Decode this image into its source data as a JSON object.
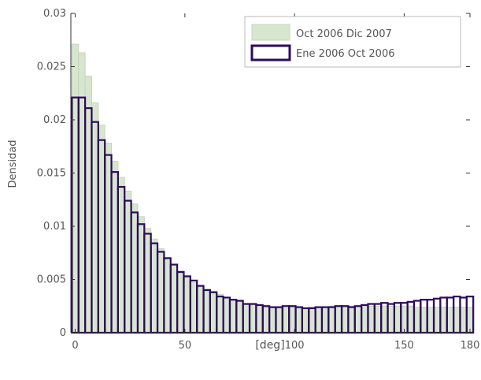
{
  "chart_data": {
    "type": "bar",
    "title": "",
    "xlabel": "[deg]",
    "ylabel": "Densidad",
    "xlim": [
      -2,
      180
    ],
    "ylim": [
      0,
      0.03
    ],
    "x_ticks": [
      0,
      50,
      100,
      150,
      180
    ],
    "y_ticks": [
      0,
      0.005,
      0.01,
      0.015,
      0.02,
      0.025,
      0.03
    ],
    "y_tick_labels": [
      "0",
      "0.005",
      "0.01",
      "0.015",
      "0.02",
      "0.025",
      "0.03"
    ],
    "bin_width": 3,
    "bin_start": -1.5,
    "legend_position": "top-right",
    "series": [
      {
        "name": "Oct 2006  Dic 2007",
        "style": "filled",
        "fill_color": "#d7e6ce",
        "edge_color": "#c6d4bc",
        "values": [
          0.0271,
          0.0263,
          0.0241,
          0.0216,
          0.0195,
          0.0178,
          0.0161,
          0.0146,
          0.0133,
          0.0121,
          0.0109,
          0.0098,
          0.0088,
          0.0079,
          0.0071,
          0.0064,
          0.0058,
          0.0052,
          0.0047,
          0.0043,
          0.0041,
          0.0039,
          0.0036,
          0.0033,
          0.0031,
          0.0029,
          0.0027,
          0.0026,
          0.0025,
          0.0024,
          0.0024,
          0.0023,
          0.0023,
          0.0024,
          0.0023,
          0.0023,
          0.0024,
          0.0024,
          0.0024,
          0.0025,
          0.0025,
          0.0025,
          0.0025,
          0.0025,
          0.0025,
          0.0025,
          0.0025,
          0.0025,
          0.0025,
          0.0025,
          0.0025,
          0.0025,
          0.0024,
          0.0024,
          0.0024,
          0.0024,
          0.0024,
          0.0024,
          0.0024,
          0.0024,
          0.0024
        ]
      },
      {
        "name": "Ene 2006  Oct 2006",
        "style": "outline",
        "edge_color": "#2e0a5c",
        "values": [
          0.0221,
          0.0221,
          0.0211,
          0.0198,
          0.0181,
          0.0167,
          0.0151,
          0.0137,
          0.0124,
          0.0113,
          0.0102,
          0.0093,
          0.0084,
          0.0076,
          0.007,
          0.0064,
          0.0057,
          0.0053,
          0.0049,
          0.0044,
          0.004,
          0.0038,
          0.0034,
          0.0033,
          0.0031,
          0.003,
          0.0027,
          0.0027,
          0.0026,
          0.0025,
          0.0024,
          0.0024,
          0.0025,
          0.0025,
          0.0024,
          0.0023,
          0.0023,
          0.0024,
          0.0024,
          0.0024,
          0.0025,
          0.0025,
          0.0024,
          0.0025,
          0.0026,
          0.0027,
          0.0027,
          0.0028,
          0.0027,
          0.0028,
          0.0028,
          0.0029,
          0.003,
          0.0031,
          0.0031,
          0.0032,
          0.0033,
          0.0033,
          0.0034,
          0.0033,
          0.0034
        ]
      }
    ]
  }
}
